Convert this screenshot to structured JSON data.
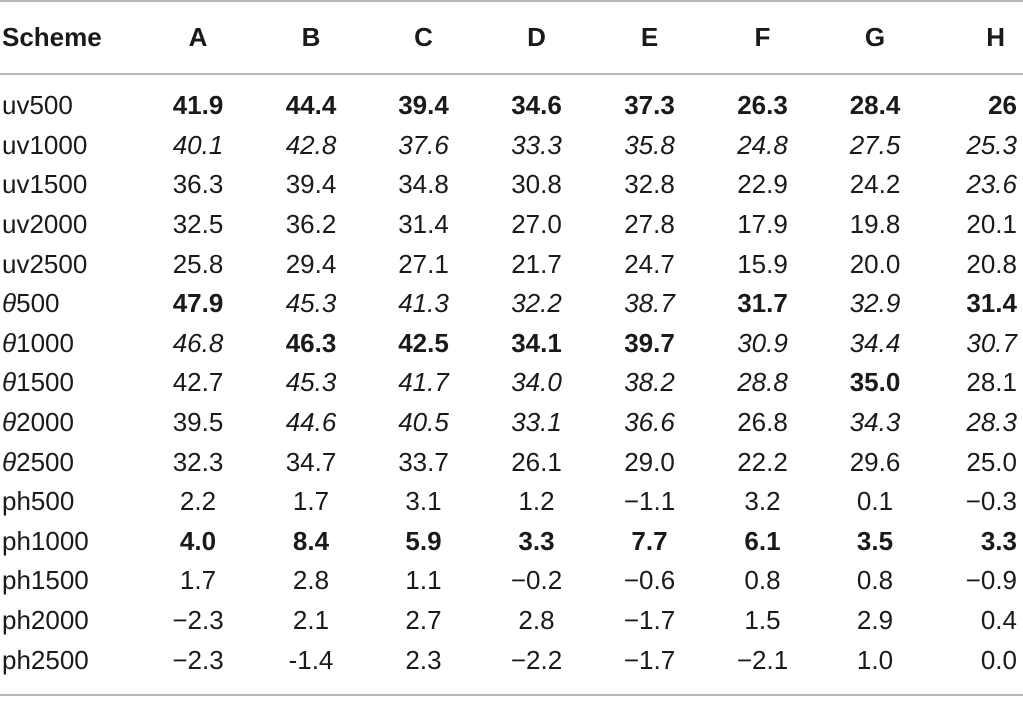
{
  "table": {
    "header": [
      "Scheme",
      "A",
      "B",
      "C",
      "D",
      "E",
      "F",
      "G",
      "H"
    ],
    "rows": [
      {
        "label": "uv500",
        "values": [
          "41.9",
          "44.4",
          "39.4",
          "34.6",
          "37.3",
          "26.3",
          "28.4",
          "26"
        ],
        "styles": [
          "b",
          "b",
          "b",
          "b",
          "b",
          "b",
          "b",
          "b"
        ]
      },
      {
        "label": "uv1000",
        "values": [
          "40.1",
          "42.8",
          "37.6",
          "33.3",
          "35.8",
          "24.8",
          "27.5",
          "25.3"
        ],
        "styles": [
          "i",
          "i",
          "i",
          "i",
          "i",
          "i",
          "i",
          "i"
        ]
      },
      {
        "label": "uv1500",
        "values": [
          "36.3",
          "39.4",
          "34.8",
          "30.8",
          "32.8",
          "22.9",
          "24.2",
          "23.6"
        ],
        "styles": [
          "",
          "",
          "",
          "",
          "",
          "",
          "",
          "i"
        ]
      },
      {
        "label": "uv2000",
        "values": [
          "32.5",
          "36.2",
          "31.4",
          "27.0",
          "27.8",
          "17.9",
          "19.8",
          "20.1"
        ],
        "styles": [
          "",
          "",
          "",
          "",
          "",
          "",
          "",
          ""
        ]
      },
      {
        "label": "uv2500",
        "values": [
          "25.8",
          "29.4",
          "27.1",
          "21.7",
          "24.7",
          "15.9",
          "20.0",
          "20.8"
        ],
        "styles": [
          "",
          "",
          "",
          "",
          "",
          "",
          "",
          ""
        ]
      },
      {
        "label": "θ500",
        "values": [
          "47.9",
          "45.3",
          "41.3",
          "32.2",
          "38.7",
          "31.7",
          "32.9",
          "31.4"
        ],
        "styles": [
          "b",
          "i",
          "i",
          "i",
          "i",
          "b",
          "i",
          "b"
        ]
      },
      {
        "label": "θ1000",
        "values": [
          "46.8",
          "46.3",
          "42.5",
          "34.1",
          "39.7",
          "30.9",
          "34.4",
          "30.7"
        ],
        "styles": [
          "i",
          "b",
          "b",
          "b",
          "b",
          "i",
          "i",
          "i"
        ]
      },
      {
        "label": "θ1500",
        "values": [
          "42.7",
          "45.3",
          "41.7",
          "34.0",
          "38.2",
          "28.8",
          "35.0",
          "28.1"
        ],
        "styles": [
          "",
          "i",
          "i",
          "i",
          "i",
          "i",
          "b",
          ""
        ]
      },
      {
        "label": "θ2000",
        "values": [
          "39.5",
          "44.6",
          "40.5",
          "33.1",
          "36.6",
          "26.8",
          "34.3",
          "28.3"
        ],
        "styles": [
          "",
          "i",
          "i",
          "i",
          "i",
          "",
          "i",
          "i"
        ]
      },
      {
        "label": "θ2500",
        "values": [
          "32.3",
          "34.7",
          "33.7",
          "26.1",
          "29.0",
          "22.2",
          "29.6",
          "25.0"
        ],
        "styles": [
          "",
          "",
          "",
          "",
          "",
          "",
          "",
          ""
        ]
      },
      {
        "label": "ph500",
        "values": [
          "2.2",
          "1.7",
          "3.1",
          "1.2",
          "−1.1",
          "3.2",
          "0.1",
          "−0.3"
        ],
        "styles": [
          "",
          "",
          "",
          "",
          "",
          "",
          "",
          ""
        ]
      },
      {
        "label": "ph1000",
        "values": [
          "4.0",
          "8.4",
          "5.9",
          "3.3",
          "7.7",
          "6.1",
          "3.5",
          "3.3"
        ],
        "styles": [
          "b",
          "b",
          "b",
          "b",
          "b",
          "b",
          "b",
          "b"
        ]
      },
      {
        "label": "ph1500",
        "values": [
          "1.7",
          "2.8",
          "1.1",
          "−0.2",
          "−0.6",
          "0.8",
          "0.8",
          "−0.9"
        ],
        "styles": [
          "",
          "",
          "",
          "",
          "",
          "",
          "",
          ""
        ]
      },
      {
        "label": "ph2000",
        "values": [
          "−2.3",
          "2.1",
          "2.7",
          "2.8",
          "−1.7",
          "1.5",
          "2.9",
          "0.4"
        ],
        "styles": [
          "",
          "",
          "",
          "",
          "",
          "",
          "",
          ""
        ]
      },
      {
        "label": "ph2500",
        "values": [
          "−2.3",
          "-1.4",
          "2.3",
          "−2.2",
          "−1.7",
          "−2.1",
          "1.0",
          "0.0"
        ],
        "styles": [
          "",
          "",
          "",
          "",
          "",
          "",
          "",
          ""
        ]
      }
    ]
  },
  "colors": {
    "rule": "#b8b8b8",
    "text": "#1a1a1a"
  }
}
